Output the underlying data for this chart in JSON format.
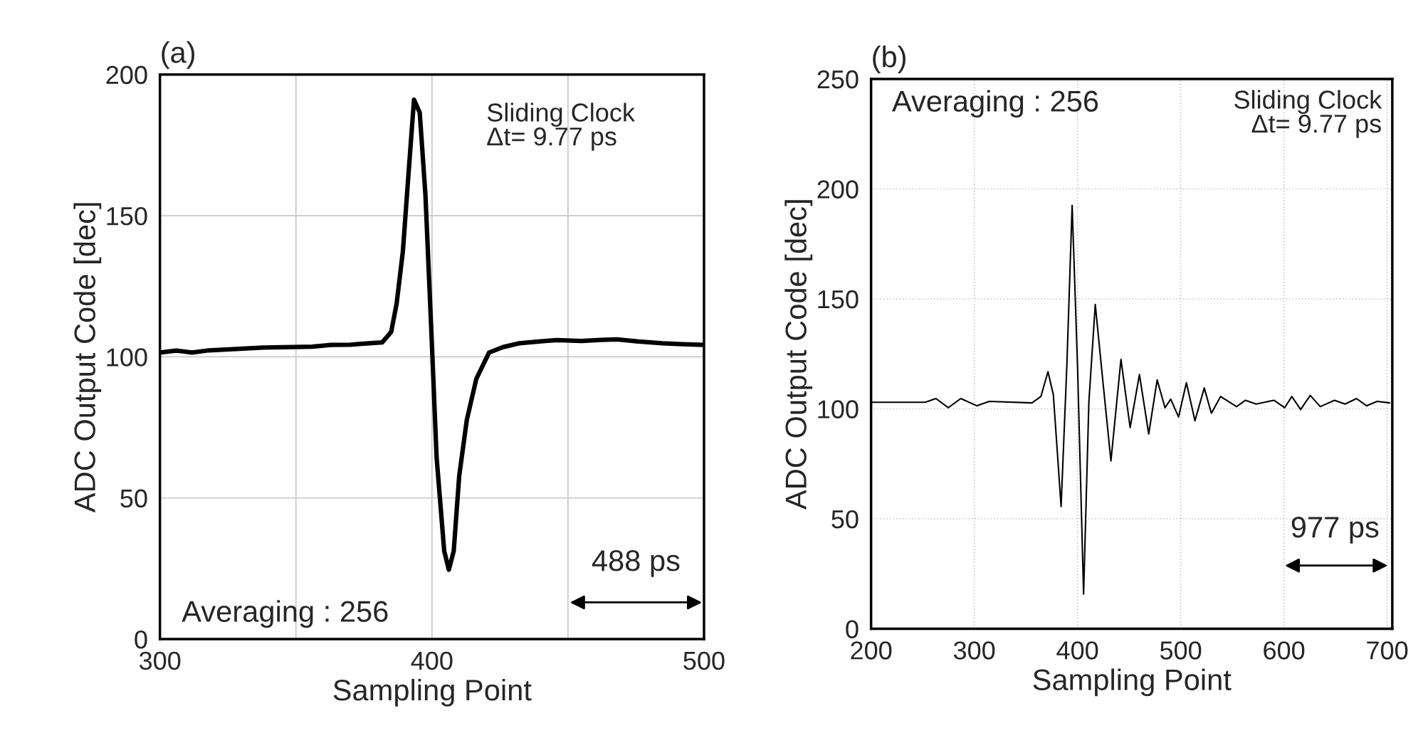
{
  "chart_data": [
    {
      "type": "line",
      "title": "(a)",
      "xlabel": "Sampling Point",
      "ylabel": "ADC Output Code [dec]",
      "xlim": [
        300,
        500
      ],
      "ylim": [
        0,
        200
      ],
      "xticks": [
        300,
        {
          "value": 350,
          "label": null
        },
        400,
        {
          "value": 450,
          "label": null
        },
        500
      ],
      "yticks": [
        0,
        50,
        100,
        150,
        200
      ],
      "grid": true,
      "marker": "none",
      "line_style": "solid",
      "series": [
        {
          "color": "#000000",
          "x": [
            300,
            306,
            311.8,
            318,
            328,
            338,
            349,
            356,
            363,
            370,
            376.8,
            381.7,
            385,
            387,
            389.3,
            391.3,
            393.4,
            395.5,
            397.6,
            399.7,
            401.7,
            404.5,
            406.2,
            408,
            410,
            412.8,
            416.3,
            421,
            426,
            432,
            440,
            446,
            455,
            462,
            468,
            476,
            484.8,
            492,
            500
          ],
          "values": [
            101.5,
            102.2,
            101.5,
            102.3,
            102.8,
            103.3,
            103.5,
            103.6,
            104.2,
            104.3,
            104.8,
            105.1,
            108.8,
            118.8,
            137.3,
            163.9,
            191.1,
            186.5,
            157.3,
            110.8,
            64.4,
            31.2,
            24.6,
            31.2,
            57.7,
            77.6,
            92.2,
            101.5,
            103.4,
            104.8,
            105.5,
            105.9,
            105.6,
            106.0,
            106.2,
            105.4,
            104.8,
            104.5,
            104.2
          ]
        }
      ],
      "annotations": [
        "Sliding Clock\nΔt= 9.77 ps",
        "Averaging : 256",
        "488 ps"
      ]
    },
    {
      "type": "line",
      "title": "(b)",
      "xlabel": "Sampling Point",
      "ylabel": "ADC Output Code [dec]",
      "xlim": [
        200,
        705
      ],
      "ylim": [
        0,
        250
      ],
      "xticks": [
        200,
        300,
        400,
        500,
        600,
        700
      ],
      "yticks": [
        0,
        50,
        100,
        150,
        200,
        250
      ],
      "grid": true,
      "marker": "none",
      "line_style": "solid",
      "series": [
        {
          "color": "#000000",
          "x": [
            200,
            252.4,
            262.8,
            274.8,
            286.9,
            302.4,
            314.5,
            355.9,
            364.5,
            371.4,
            376.6,
            384.1,
            389.7,
            394.8,
            400,
            405.9,
            411,
            417.2,
            424.8,
            432.4,
            442.1,
            451,
            460,
            469,
            477.2,
            484.8,
            490.3,
            497.9,
            505.5,
            513.8,
            522.8,
            529.7,
            538.6,
            554.1,
            562.8,
            573.1,
            590.3,
            600.7,
            607.6,
            616.2,
            625.5,
            635.2,
            649,
            659.3,
            670.3,
            680,
            690.3,
            702.4
          ],
          "values": [
            103,
            103,
            104.7,
            100.5,
            104.7,
            101.4,
            103.4,
            102.7,
            105.6,
            116.9,
            106.4,
            55.6,
            120,
            192.5,
            120,
            15.8,
            103,
            147.5,
            111.5,
            76.3,
            122.5,
            91.5,
            115.6,
            88.6,
            113.2,
            100.5,
            104.4,
            96.3,
            111.9,
            94.6,
            109.5,
            98,
            105.6,
            101,
            103.9,
            102.2,
            103.9,
            100.5,
            105.6,
            99.7,
            106.1,
            101,
            103.9,
            102.2,
            104.7,
            101.4,
            103.4,
            102.7
          ]
        }
      ],
      "annotations": [
        "Sliding Clock\nΔt= 9.77 ps",
        "Averaging : 256",
        "977 ps"
      ]
    }
  ]
}
